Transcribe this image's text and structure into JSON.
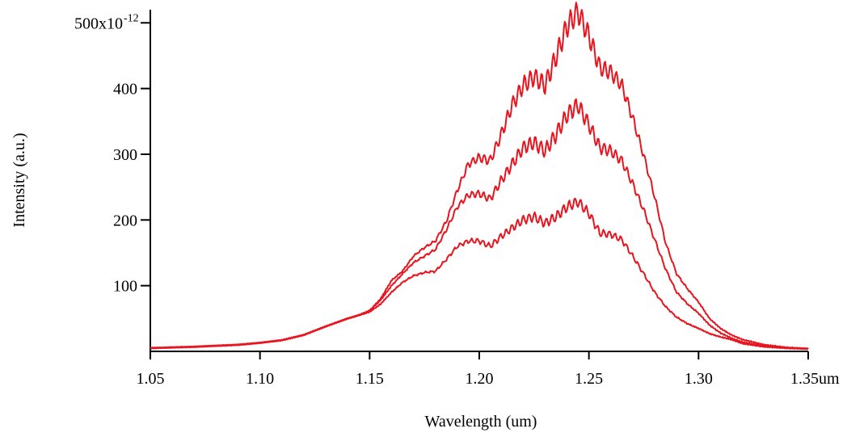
{
  "chart_data": {
    "type": "line",
    "title": "",
    "xlabel": "Wavelength (um)",
    "ylabel": "Intensity (a.u.)",
    "xlim": [
      1.05,
      1.35
    ],
    "ylim": [
      0,
      520
    ],
    "y_scale_note": "x10^-12",
    "grid": false,
    "legend": "none",
    "line_color": "#e8141e",
    "x_ticks": [
      {
        "value": 1.05,
        "label": "1.05"
      },
      {
        "value": 1.1,
        "label": "1.10"
      },
      {
        "value": 1.15,
        "label": "1.15"
      },
      {
        "value": 1.2,
        "label": "1.20"
      },
      {
        "value": 1.25,
        "label": "1.25"
      },
      {
        "value": 1.3,
        "label": "1.30"
      },
      {
        "value": 1.35,
        "label": "1.35um"
      }
    ],
    "y_ticks": [
      {
        "value": 100,
        "label": "100"
      },
      {
        "value": 200,
        "label": "200"
      },
      {
        "value": 300,
        "label": "300"
      },
      {
        "value": 400,
        "label": "400"
      },
      {
        "value": 500,
        "label": "500x10",
        "sup": "-12"
      }
    ],
    "series": [
      {
        "x": [
          1.05,
          1.07,
          1.09,
          1.1,
          1.11,
          1.12,
          1.13,
          1.14,
          1.145,
          1.15,
          1.155,
          1.16,
          1.165,
          1.17,
          1.175,
          1.18,
          1.185,
          1.19,
          1.195,
          1.2,
          1.205,
          1.21,
          1.215,
          1.22,
          1.225,
          1.23,
          1.235,
          1.24,
          1.245,
          1.25,
          1.255,
          1.26,
          1.265,
          1.27,
          1.275,
          1.28,
          1.285,
          1.29,
          1.295,
          1.3,
          1.305,
          1.31,
          1.315,
          1.32,
          1.33,
          1.34,
          1.35
        ],
        "values": [
          5,
          7,
          10,
          13,
          17,
          25,
          38,
          50,
          55,
          62,
          80,
          108,
          122,
          145,
          158,
          168,
          198,
          245,
          285,
          295,
          290,
          330,
          375,
          405,
          418,
          405,
          448,
          495,
          517,
          480,
          432,
          425,
          405,
          355,
          298,
          235,
          165,
          118,
          95,
          75,
          50,
          35,
          25,
          18,
          10,
          6,
          4
        ]
      },
      {
        "x": [
          1.05,
          1.07,
          1.09,
          1.1,
          1.11,
          1.12,
          1.13,
          1.14,
          1.145,
          1.15,
          1.155,
          1.16,
          1.165,
          1.17,
          1.175,
          1.18,
          1.185,
          1.19,
          1.195,
          1.2,
          1.205,
          1.21,
          1.215,
          1.22,
          1.225,
          1.23,
          1.235,
          1.24,
          1.245,
          1.25,
          1.255,
          1.26,
          1.265,
          1.27,
          1.275,
          1.28,
          1.285,
          1.29,
          1.295,
          1.3,
          1.305,
          1.31,
          1.315,
          1.32,
          1.33,
          1.34,
          1.35
        ],
        "values": [
          5,
          7,
          10,
          13,
          17,
          25,
          38,
          50,
          55,
          62,
          78,
          100,
          118,
          135,
          145,
          155,
          185,
          220,
          238,
          240,
          232,
          260,
          285,
          310,
          318,
          305,
          330,
          360,
          375,
          345,
          310,
          305,
          290,
          255,
          215,
          170,
          125,
          90,
          72,
          58,
          40,
          28,
          20,
          14,
          8,
          5,
          4
        ]
      },
      {
        "x": [
          1.05,
          1.07,
          1.09,
          1.1,
          1.11,
          1.12,
          1.13,
          1.14,
          1.145,
          1.15,
          1.155,
          1.16,
          1.165,
          1.17,
          1.175,
          1.18,
          1.185,
          1.19,
          1.195,
          1.2,
          1.205,
          1.21,
          1.215,
          1.22,
          1.225,
          1.23,
          1.235,
          1.24,
          1.245,
          1.25,
          1.255,
          1.26,
          1.265,
          1.27,
          1.275,
          1.28,
          1.285,
          1.29,
          1.295,
          1.3,
          1.305,
          1.31,
          1.315,
          1.32,
          1.33,
          1.34,
          1.35
        ],
        "values": [
          5,
          7,
          10,
          13,
          17,
          25,
          38,
          50,
          55,
          60,
          72,
          90,
          105,
          115,
          120,
          122,
          140,
          160,
          168,
          168,
          160,
          175,
          188,
          200,
          205,
          195,
          205,
          220,
          228,
          210,
          180,
          178,
          170,
          145,
          118,
          90,
          68,
          52,
          42,
          35,
          27,
          22,
          18,
          12,
          7,
          5,
          4
        ]
      }
    ]
  }
}
